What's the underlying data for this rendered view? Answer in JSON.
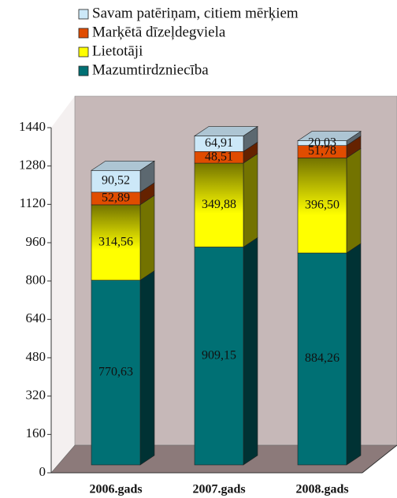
{
  "chart_data": {
    "type": "bar3d_stacked",
    "categories": [
      "2006.gads",
      "2007.gads",
      "2008.gads"
    ],
    "series": [
      {
        "name": "Mazumtirdzniecība",
        "color": "#007074",
        "values": [
          770.63,
          909.15,
          884.26
        ],
        "value_labels": [
          "770,63",
          "909,15",
          "884,26"
        ]
      },
      {
        "name": "Lietotāji",
        "color": "#ffff00",
        "values": [
          314.56,
          349.88,
          396.5
        ],
        "value_labels": [
          "314,56",
          "349,88",
          "396,50"
        ]
      },
      {
        "name": "Marķētā dīzeļdegviela",
        "color": "#e04c00",
        "values": [
          52.89,
          48.51,
          51.78
        ],
        "value_labels": [
          "52,89",
          "48,51",
          "51,78"
        ]
      },
      {
        "name": "Savam patēriņam, citiem mērķiem",
        "color": "#cce8f8",
        "values": [
          90.52,
          64.91,
          20.03
        ],
        "value_labels": [
          "90,52",
          "64,91",
          "20,03"
        ]
      }
    ],
    "ylim": [
      0,
      1440
    ],
    "yticks": [
      0,
      160,
      320,
      480,
      640,
      800,
      960,
      1120,
      1280,
      1440
    ]
  }
}
